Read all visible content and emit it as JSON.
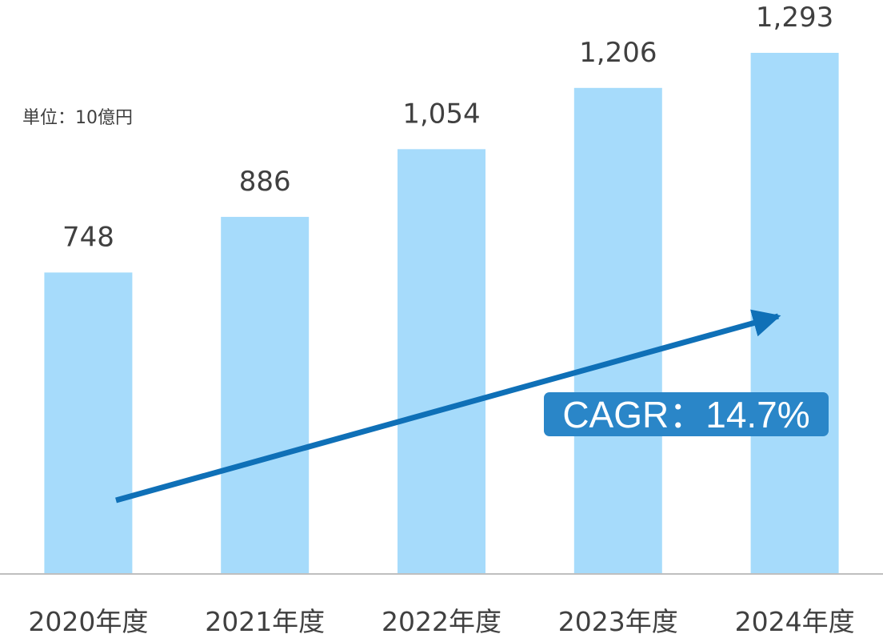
{
  "chart_data": {
    "type": "bar",
    "categories": [
      "2020年度",
      "2021年度",
      "2022年度",
      "2023年度",
      "2024年度"
    ],
    "values": [
      748,
      886,
      1054,
      1206,
      1293
    ],
    "value_labels": [
      "748",
      "886",
      "1,054",
      "1,206",
      "1,293"
    ],
    "unit_label": "単位：10億円",
    "annotation": "CAGR：14.7%",
    "ylim": [
      0,
      1293
    ],
    "grid": false,
    "legend": "none"
  },
  "colors": {
    "bar": "#a6dbfb",
    "arrow": "#0f70b7",
    "badge": "#2a86c8",
    "axis": "#bfbfbf",
    "text": "#404040"
  }
}
